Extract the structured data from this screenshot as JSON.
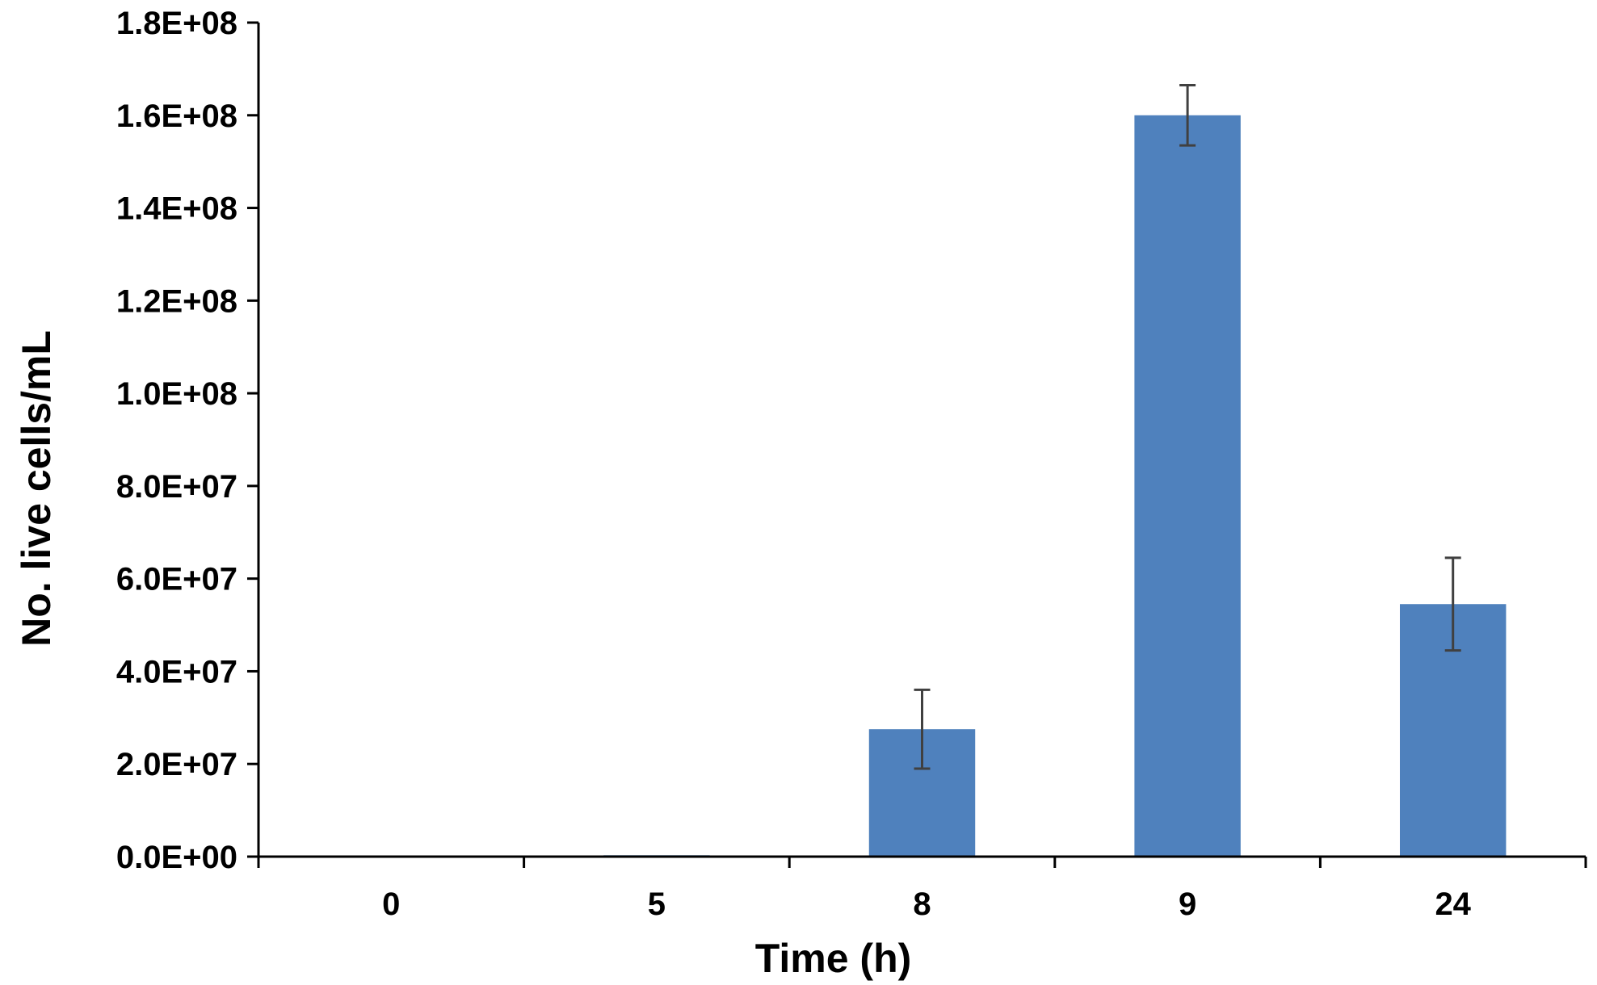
{
  "chart_data": {
    "type": "bar",
    "title": "",
    "xlabel": "Time (h)",
    "ylabel": "No. live cells/mL",
    "categories": [
      "0",
      "5",
      "8",
      "9",
      "24"
    ],
    "series": [
      {
        "values": [
          0,
          300000,
          27500000,
          160000000,
          54500000
        ],
        "error": [
          0,
          0,
          8500000,
          6500000,
          10000000
        ]
      }
    ],
    "ylim": [
      0,
      180000000
    ],
    "yticks": [
      0,
      20000000,
      40000000,
      60000000,
      80000000,
      100000000,
      120000000,
      140000000,
      160000000,
      180000000
    ],
    "ytick_labels": [
      "0.0E+00",
      "2.0E+07",
      "4.0E+07",
      "6.0E+07",
      "8.0E+07",
      "1.0E+08",
      "1.2E+08",
      "1.4E+08",
      "1.6E+08",
      "1.8E+08"
    ],
    "grid": false,
    "legend": "none",
    "colors": {
      "bar": "#4f81bd",
      "error_bar": "#404040",
      "axis": "#000000"
    }
  }
}
